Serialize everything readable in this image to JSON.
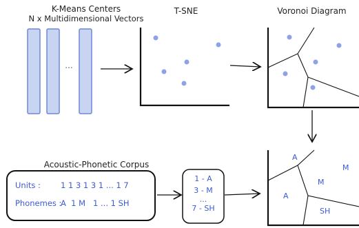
{
  "titles": {
    "kmeans_line1": "K-Means Centers",
    "kmeans_line2": "N x Multidimensional Vectors",
    "tsne": "T-SNE",
    "voronoi": "Voronoi Diagram",
    "corpus": "Acoustic-Phonetic Corpus"
  },
  "vectors": {
    "ellipsis": "..."
  },
  "corpus": {
    "units_label": "Units :",
    "units_value": "1 1 3 1 3 1 ... 1 7",
    "phonemes_label": "Phonemes :",
    "phonemes_value": "A  1 M   1 ... 1 SH"
  },
  "mapping": [
    "1 - A",
    "3 - M",
    "...",
    "7 - SH"
  ],
  "labeled_regions": [
    "A",
    "M",
    "M",
    "A",
    "SH"
  ],
  "colors": {
    "vector_fill": "#c9d4f3",
    "vector_stroke": "#6e86d8",
    "point": "#8da3e6",
    "label_blue": "#3b5bd6",
    "ink": "#111111"
  }
}
